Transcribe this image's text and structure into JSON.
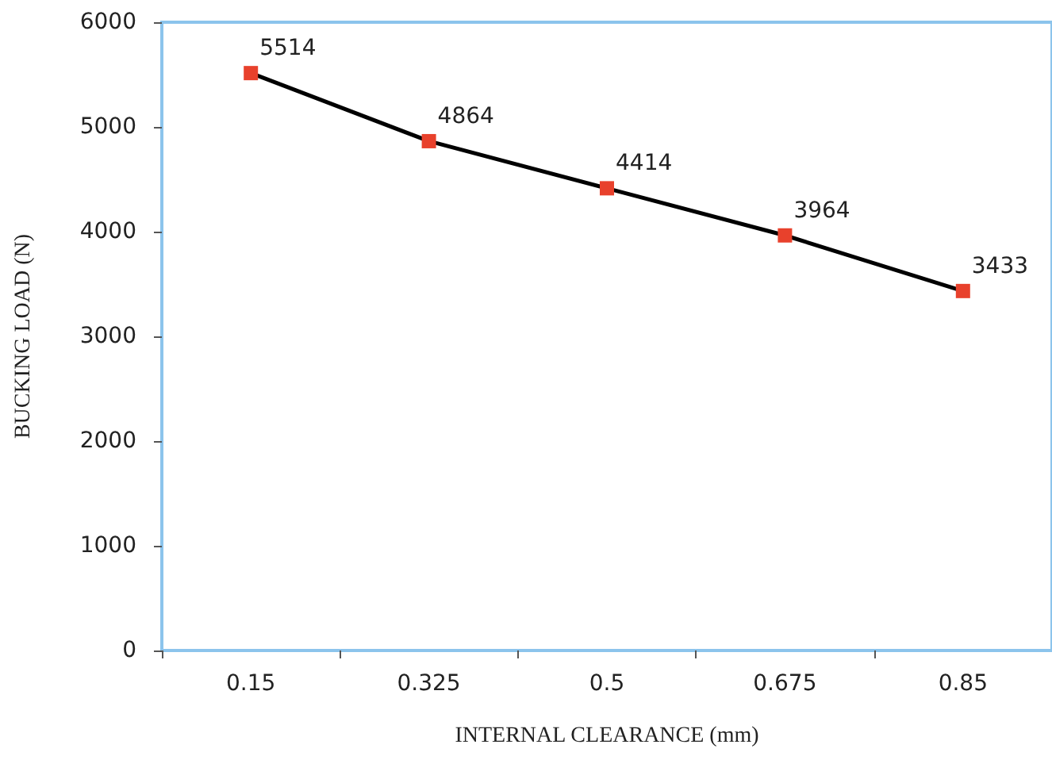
{
  "chart_data": {
    "type": "line",
    "xlabel": "INTERNAL CLEARANCE (mm)",
    "ylabel": "BUCKING LOAD (N)",
    "categories": [
      "0.15",
      "0.325",
      "0.5",
      "0.675",
      "0.85"
    ],
    "series": [
      {
        "color": "#000000",
        "values": [
          5514,
          4864,
          4414,
          3964,
          3433
        ]
      }
    ],
    "ylim": [
      0,
      6000
    ],
    "yticks": [
      0,
      1000,
      2000,
      3000,
      4000,
      5000,
      6000
    ],
    "grid": false,
    "marker": "square",
    "line_style": "solid",
    "data_labels": true
  }
}
